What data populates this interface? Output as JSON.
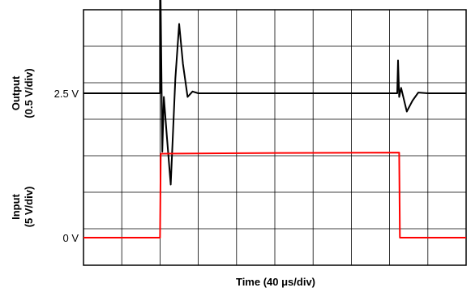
{
  "chart_data": [
    {
      "type": "line",
      "panel": "output",
      "ylabel_line1": "Output",
      "ylabel_line2": "(0.5 V/div)",
      "reference_label": "2.5 V",
      "reference_value_V": 2.5,
      "volts_per_div": 0.5,
      "series": [
        {
          "color": "#000000",
          "x_div": [
            0,
            2.0,
            2.0,
            2.06,
            2.1,
            2.18,
            2.28,
            2.4,
            2.5,
            2.6,
            2.72,
            2.85,
            3.0,
            4.0,
            6.0,
            8.0,
            8.2,
            8.22,
            8.25,
            8.3,
            8.45,
            8.6,
            8.75,
            9.0,
            10.0
          ],
          "y_div": [
            0,
            0,
            4.0,
            -1.6,
            -0.1,
            -1.2,
            -2.5,
            0.4,
            1.9,
            0.8,
            -0.1,
            0.05,
            0,
            0,
            0,
            0,
            0,
            0.9,
            -0.1,
            0.15,
            -0.5,
            -0.2,
            0.02,
            0,
            0
          ]
        }
      ]
    },
    {
      "type": "line",
      "panel": "input",
      "ylabel_line1": "Input",
      "ylabel_line2": "(5 V/div)",
      "reference_label": "0 V",
      "reference_value_V": 0,
      "volts_per_div": 5,
      "series": [
        {
          "color": "#ff0000",
          "x_div": [
            0,
            2.0,
            2.02,
            5.0,
            8.25,
            8.27,
            10.0
          ],
          "y_div": [
            0,
            0,
            2.3,
            2.32,
            2.33,
            0,
            0
          ]
        }
      ]
    }
  ],
  "grid": {
    "x_divisions": 10,
    "y_divisions": 7,
    "grid_on": true
  },
  "xlabel": "Time (40 μs/div)",
  "colors": {
    "output_trace": "#000000",
    "input_trace": "#ff0000",
    "grid": "#000000",
    "background": "#ffffff"
  }
}
